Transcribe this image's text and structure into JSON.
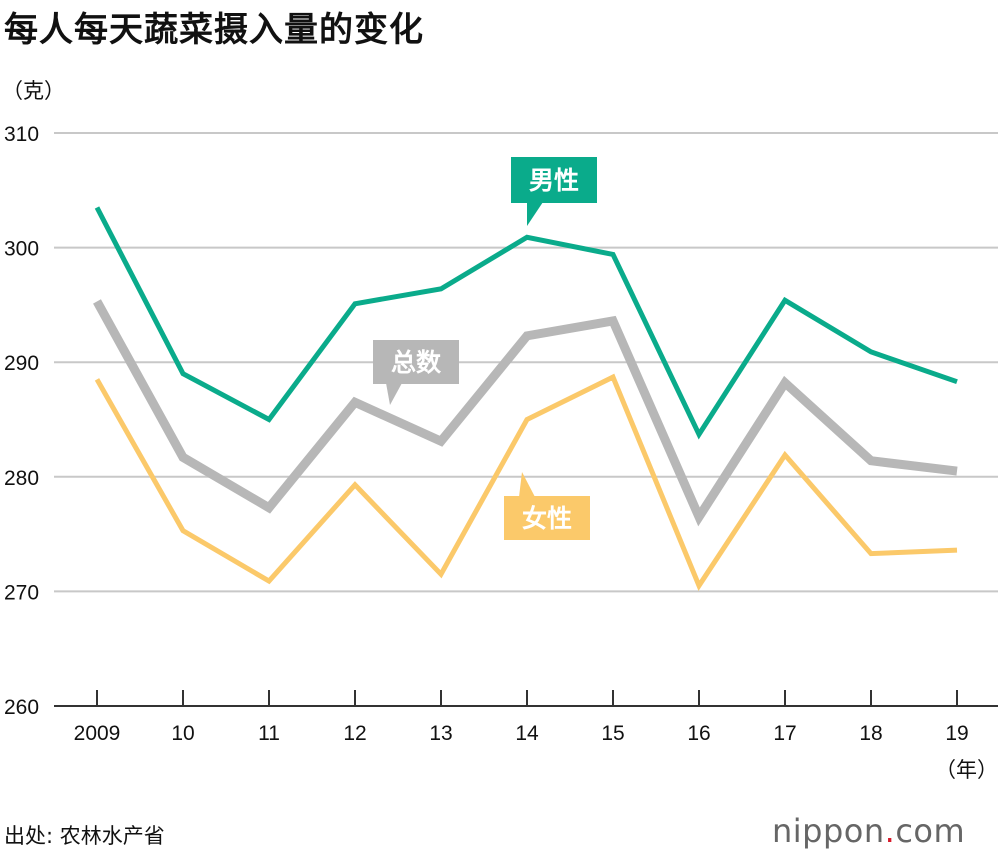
{
  "title": "每人每天蔬菜摄入量的变化",
  "source": "出处: 农林水产省",
  "logo": {
    "brand": "nippon",
    "dot": ".",
    "tld": "com"
  },
  "colors": {
    "male": "#0aab8b",
    "total": "#b7b7b7",
    "female": "#fbc96a",
    "grid": "#c8c8c8",
    "axis": "#333333"
  },
  "chart_data": {
    "type": "line",
    "title": "每人每天蔬菜摄入量的变化",
    "ylabel": "（克）",
    "xlabel": "（年）",
    "categories": [
      "2009",
      "10",
      "11",
      "12",
      "13",
      "14",
      "15",
      "16",
      "17",
      "18",
      "19"
    ],
    "ylim": [
      260,
      310
    ],
    "yticks": [
      260,
      270,
      280,
      290,
      300,
      310
    ],
    "series": [
      {
        "name": "男性",
        "key": "male",
        "values": [
          303.5,
          289.0,
          285.0,
          295.1,
          296.4,
          300.9,
          299.4,
          283.7,
          295.4,
          290.9,
          288.3
        ]
      },
      {
        "name": "总数",
        "key": "total",
        "values": [
          295.3,
          281.7,
          277.3,
          286.5,
          283.1,
          292.3,
          293.6,
          276.5,
          288.2,
          281.4,
          280.5
        ]
      },
      {
        "name": "女性",
        "key": "female",
        "values": [
          288.5,
          275.3,
          270.9,
          279.3,
          271.5,
          285.0,
          288.7,
          270.5,
          281.9,
          273.3,
          273.6
        ]
      }
    ]
  }
}
